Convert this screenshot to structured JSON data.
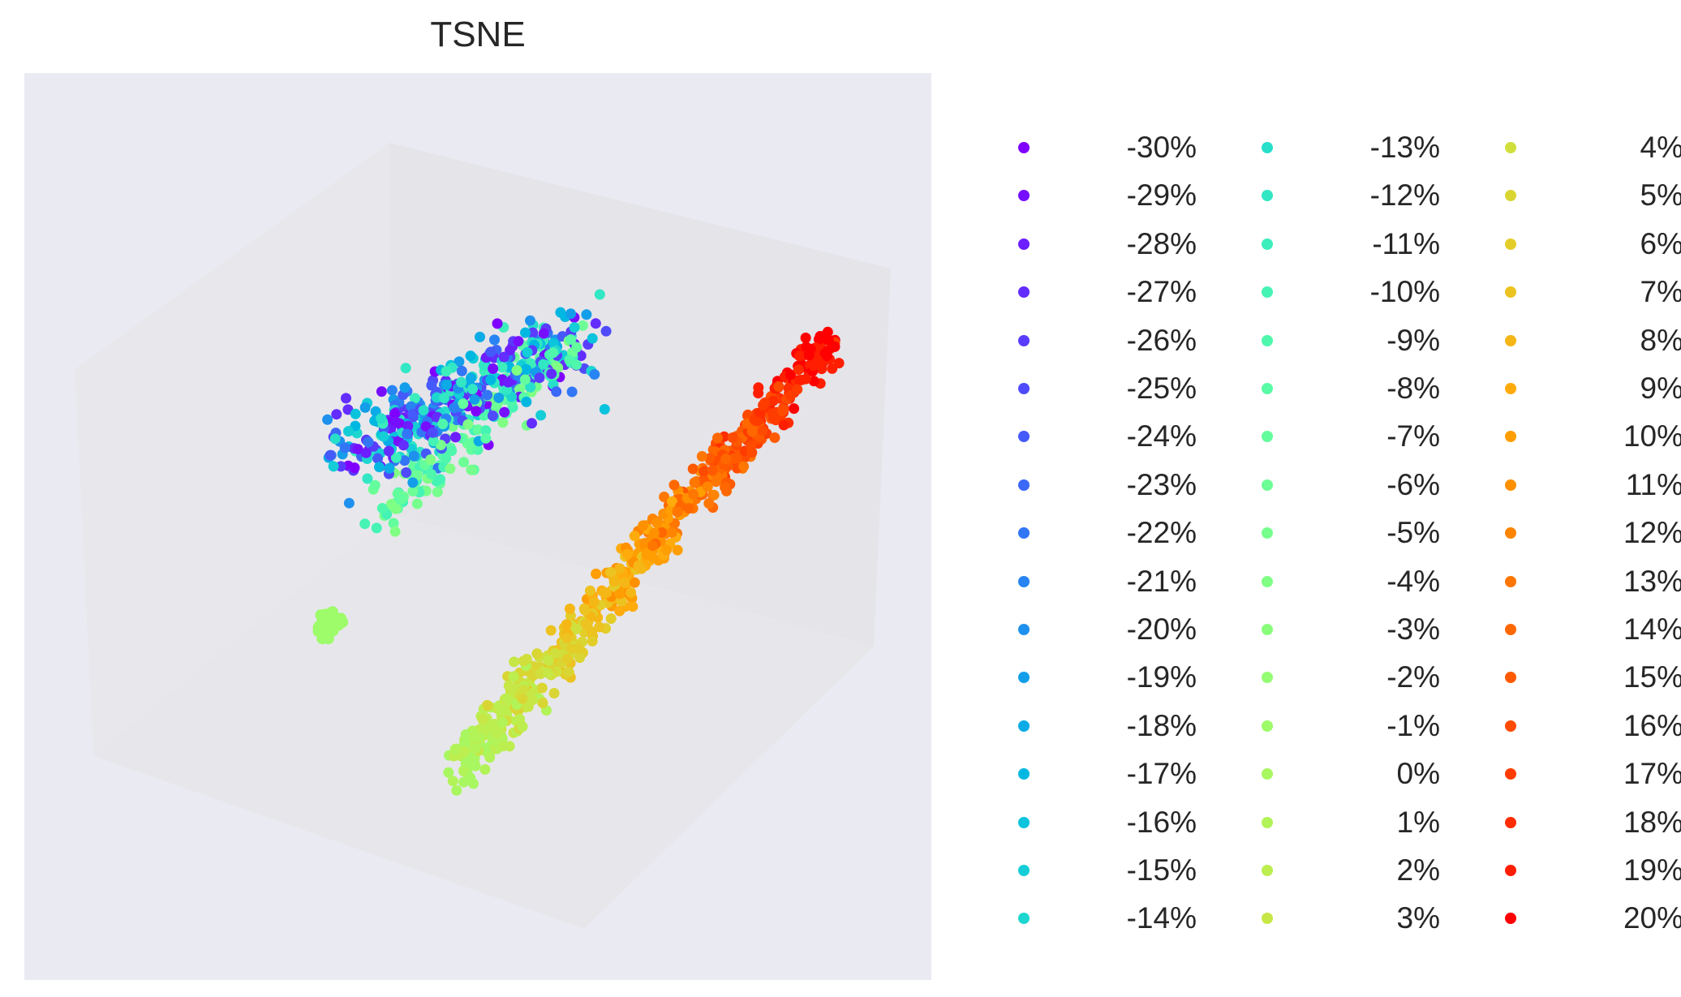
{
  "chart_data": {
    "type": "scatter",
    "title": "TSNE",
    "projection": "3d",
    "axes_visible": false,
    "grid": false,
    "legend": {
      "placement": "right, outside plot",
      "columns": 3,
      "colormap": "rainbow",
      "entries": [
        {
          "label": "-30%",
          "color": "#8000ff"
        },
        {
          "label": "-29%",
          "color": "#770fff"
        },
        {
          "label": "-28%",
          "color": "#6d1eff"
        },
        {
          "label": "-27%",
          "color": "#632dfe"
        },
        {
          "label": "-26%",
          "color": "#593cfd"
        },
        {
          "label": "-25%",
          "color": "#4f4bfc"
        },
        {
          "label": "-24%",
          "color": "#455afa"
        },
        {
          "label": "-23%",
          "color": "#3c68f8"
        },
        {
          "label": "-22%",
          "color": "#3276f5"
        },
        {
          "label": "-21%",
          "color": "#2884f2"
        },
        {
          "label": "-20%",
          "color": "#1e91ee"
        },
        {
          "label": "-19%",
          "color": "#149eea"
        },
        {
          "label": "-18%",
          "color": "#0aabe6"
        },
        {
          "label": "-17%",
          "color": "#00b7e1"
        },
        {
          "label": "-16%",
          "color": "#0ac3dc"
        },
        {
          "label": "-15%",
          "color": "#14cdd6"
        },
        {
          "label": "-14%",
          "color": "#1ed6d0"
        },
        {
          "label": "-13%",
          "color": "#28dfca"
        },
        {
          "label": "-12%",
          "color": "#32e7c3"
        },
        {
          "label": "-11%",
          "color": "#3ceebc"
        },
        {
          "label": "-10%",
          "color": "#45f3b5"
        },
        {
          "label": "-9%",
          "color": "#4ff7ad"
        },
        {
          "label": "-8%",
          "color": "#59fba6"
        },
        {
          "label": "-7%",
          "color": "#63fd9e"
        },
        {
          "label": "-6%",
          "color": "#6dfe96"
        },
        {
          "label": "-5%",
          "color": "#77ff8d"
        },
        {
          "label": "-4%",
          "color": "#80ff85"
        },
        {
          "label": "-3%",
          "color": "#8afe7c"
        },
        {
          "label": "-2%",
          "color": "#94fd73"
        },
        {
          "label": "-1%",
          "color": "#9efb6a"
        },
        {
          "label": "0%",
          "color": "#a8f761"
        },
        {
          "label": "1%",
          "color": "#b2f358"
        },
        {
          "label": "2%",
          "color": "#bcee4f"
        },
        {
          "label": "3%",
          "color": "#c6e746"
        },
        {
          "label": "4%",
          "color": "#d0df3c"
        },
        {
          "label": "5%",
          "color": "#d9d633"
        },
        {
          "label": "6%",
          "color": "#e3cd29"
        },
        {
          "label": "7%",
          "color": "#ecc320"
        },
        {
          "label": "8%",
          "color": "#f5b716"
        },
        {
          "label": "9%",
          "color": "#ffab0c"
        },
        {
          "label": "10%",
          "color": "#ff9e03"
        },
        {
          "label": "11%",
          "color": "#ff9100"
        },
        {
          "label": "12%",
          "color": "#ff8400"
        },
        {
          "label": "13%",
          "color": "#ff7600"
        },
        {
          "label": "14%",
          "color": "#ff6800"
        },
        {
          "label": "15%",
          "color": "#ff5a00"
        },
        {
          "label": "16%",
          "color": "#ff4b00"
        },
        {
          "label": "17%",
          "color": "#ff3c00"
        },
        {
          "label": "18%",
          "color": "#ff2d00"
        },
        {
          "label": "19%",
          "color": "#ff1e00"
        },
        {
          "label": "20%",
          "color": "#ff0000"
        }
      ]
    }
  },
  "colors": {
    "axes_background": "#eaeaf2",
    "pane": "#e6e6ea",
    "pane_edge": "#dddde4"
  }
}
